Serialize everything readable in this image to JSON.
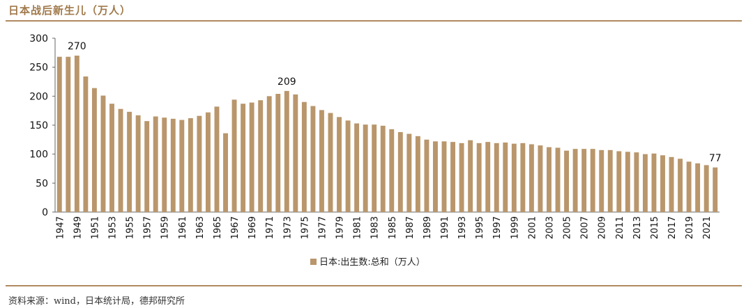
{
  "header": {
    "title": "日本战后新生儿（万人）"
  },
  "footer": {
    "source": "资料来源：wind，日本统计局，德邦研究所"
  },
  "colors": {
    "bar": "#b9966b",
    "rule": "#b08960",
    "title": "#a0794a"
  },
  "chart_data": {
    "type": "bar",
    "title": "日本战后新生儿（万人）",
    "ylim": [
      0,
      300
    ],
    "yticks": [
      0,
      50,
      100,
      150,
      200,
      250,
      300
    ],
    "grid": false,
    "legend_position": "bottom-center",
    "categories": [
      1947,
      1948,
      1949,
      1950,
      1951,
      1952,
      1953,
      1954,
      1955,
      1956,
      1957,
      1958,
      1959,
      1960,
      1961,
      1962,
      1963,
      1964,
      1965,
      1966,
      1967,
      1968,
      1969,
      1970,
      1971,
      1972,
      1973,
      1974,
      1975,
      1976,
      1977,
      1978,
      1979,
      1980,
      1981,
      1982,
      1983,
      1984,
      1985,
      1986,
      1987,
      1988,
      1989,
      1990,
      1991,
      1992,
      1993,
      1994,
      1995,
      1996,
      1997,
      1998,
      1999,
      2000,
      2001,
      2002,
      2003,
      2004,
      2005,
      2006,
      2007,
      2008,
      2009,
      2010,
      2011,
      2012,
      2013,
      2014,
      2015,
      2016,
      2017,
      2018,
      2019,
      2020,
      2021,
      2022
    ],
    "xtick_labels": [
      "1947",
      "1949",
      "1951",
      "1953",
      "1955",
      "1957",
      "1959",
      "1961",
      "1963",
      "1965",
      "1967",
      "1969",
      "1971",
      "1973",
      "1975",
      "1977",
      "1979",
      "1981",
      "1983",
      "1985",
      "1987",
      "1989",
      "1991",
      "1993",
      "1995",
      "1997",
      "1999",
      "2001",
      "2003",
      "2005",
      "2007",
      "2009",
      "2011",
      "2013",
      "2015",
      "2017",
      "2019",
      "2021"
    ],
    "series": [
      {
        "name": "日本:出生数:总和（万人）",
        "values": [
          268,
          268,
          270,
          234,
          214,
          201,
          187,
          178,
          173,
          167,
          157,
          165,
          163,
          161,
          159,
          162,
          166,
          172,
          182,
          136,
          194,
          187,
          189,
          193,
          200,
          204,
          209,
          203,
          190,
          183,
          176,
          171,
          164,
          158,
          153,
          151,
          151,
          149,
          143,
          138,
          135,
          131,
          125,
          122,
          122,
          121,
          119,
          124,
          119,
          121,
          119,
          120,
          118,
          119,
          117,
          115,
          112,
          111,
          106,
          109,
          109,
          109,
          107,
          107,
          105,
          104,
          103,
          100,
          101,
          98,
          95,
          92,
          87,
          84,
          81,
          77
        ]
      }
    ],
    "annotations": [
      {
        "year": 1949,
        "label": "270"
      },
      {
        "year": 1973,
        "label": "209"
      },
      {
        "year": 2022,
        "label": "77"
      }
    ]
  }
}
